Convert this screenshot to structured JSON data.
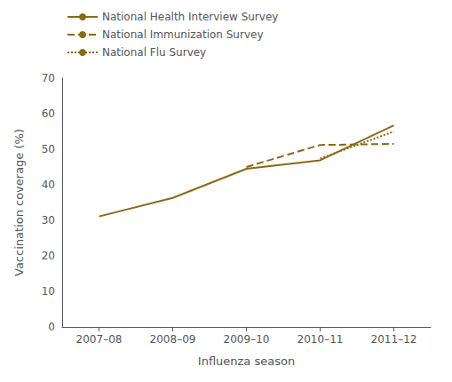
{
  "chart_data": {
    "type": "line",
    "xlabel": "Influenza season",
    "ylabel": "Vaccination coverage (%)",
    "categories": [
      "2007–08",
      "2008–09",
      "2009–10",
      "2010–11",
      "2011–12"
    ],
    "series": [
      {
        "name": "National Health Interview Survey",
        "color": "#8B6914",
        "line_style": "solid",
        "values": [
          31.1,
          36.3,
          44.5,
          46.9,
          56.7
        ]
      },
      {
        "name": "National Immunization Survey",
        "color": "#8B6914",
        "line_style": "dashed",
        "values": [
          null,
          null,
          45.0,
          51.2,
          51.5
        ]
      },
      {
        "name": "National Flu Survey",
        "color": "#8B6914",
        "line_style": "dotted",
        "values": [
          null,
          null,
          null,
          47.4,
          55.0
        ]
      }
    ],
    "ylim": [
      0,
      70
    ],
    "yticks": [
      0,
      10,
      20,
      30,
      40,
      50,
      60,
      70
    ],
    "grid": false,
    "legend": "upper left"
  }
}
